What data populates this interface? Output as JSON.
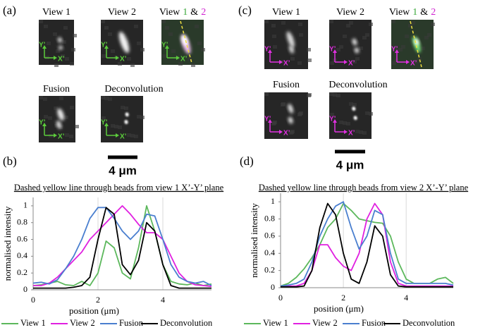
{
  "figure": {
    "panel_labels": [
      "(a)",
      "(b)",
      "(c)",
      "(d)"
    ],
    "image_titles": {
      "view1": "View 1",
      "view2": "View 2",
      "fusion": "Fusion",
      "deconvolution": "Deconvolution",
      "merged": [
        "View",
        "1",
        "&",
        "2"
      ]
    },
    "image_axes": {
      "y": "Y’",
      "x": "X’"
    },
    "scale_bar": "4 μm"
  },
  "chart_data": [
    {
      "type": "line",
      "title": "Dashed yellow line through beads from view 1 X’-Y’ plane",
      "xlabel": "position (μm)",
      "ylabel": "normalised intensity",
      "x": [
        0,
        0.25,
        0.5,
        0.75,
        1,
        1.25,
        1.5,
        1.75,
        2,
        2.25,
        2.5,
        2.75,
        3,
        3.25,
        3.5,
        3.75,
        4,
        4.25,
        4.5,
        4.75,
        5,
        5.25,
        5.5
      ],
      "series": [
        {
          "name": "View 1",
          "color": "#5cb85c",
          "values": [
            0.05,
            0.06,
            0.08,
            0.1,
            0.06,
            0.05,
            0.1,
            0.05,
            0.2,
            0.58,
            0.5,
            0.2,
            0.13,
            0.5,
            1.0,
            0.7,
            0.3,
            0.1,
            0.07,
            0.06,
            0.08,
            0.05,
            0.07
          ]
        },
        {
          "name": "View 2",
          "color": "#e020e0",
          "values": [
            0.05,
            0.05,
            0.08,
            0.15,
            0.25,
            0.35,
            0.45,
            0.6,
            0.7,
            0.8,
            0.9,
            1.0,
            0.9,
            0.78,
            0.68,
            0.68,
            0.6,
            0.4,
            0.2,
            0.1,
            0.06,
            0.05,
            0.04
          ]
        },
        {
          "name": "Fusion",
          "color": "#4a7fcf",
          "values": [
            0.08,
            0.09,
            0.07,
            0.12,
            0.25,
            0.4,
            0.6,
            0.85,
            0.98,
            0.98,
            0.85,
            0.7,
            0.6,
            0.7,
            0.9,
            0.88,
            0.6,
            0.3,
            0.15,
            0.1,
            0.08,
            0.1,
            0.05
          ]
        },
        {
          "name": "Deconvolution",
          "color": "#000000",
          "values": [
            0.02,
            0.02,
            0.02,
            0.02,
            0.02,
            0.03,
            0.05,
            0.15,
            0.6,
            0.98,
            0.9,
            0.3,
            0.18,
            0.35,
            0.8,
            0.7,
            0.3,
            0.05,
            0.02,
            0.02,
            0.02,
            0.02,
            0.02
          ]
        }
      ],
      "xlim": [
        0,
        5.5
      ],
      "xticks": [
        0,
        2,
        4
      ],
      "ylim": [
        0,
        1.1
      ],
      "yticks": [
        0,
        0.2,
        0.4,
        0.6,
        0.8,
        1
      ],
      "grid": true,
      "legend": "bottom"
    },
    {
      "type": "line",
      "title": "Dashed yellow line through beads from view 2 X’-Y’ plane",
      "xlabel": "position (μm)",
      "ylabel": "normalised intensity",
      "x": [
        0,
        0.25,
        0.5,
        0.75,
        1,
        1.25,
        1.5,
        1.75,
        2,
        2.25,
        2.5,
        2.75,
        3,
        3.25,
        3.5,
        3.75,
        4,
        4.25,
        4.5,
        4.75,
        5,
        5.25,
        5.5
      ],
      "series": [
        {
          "name": "View 1",
          "color": "#5cb85c",
          "values": [
            0.02,
            0.05,
            0.12,
            0.22,
            0.35,
            0.5,
            0.7,
            0.8,
            0.98,
            0.9,
            0.8,
            0.78,
            0.76,
            0.75,
            0.6,
            0.3,
            0.1,
            0.05,
            0.05,
            0.05,
            0.1,
            0.12,
            0.05
          ]
        },
        {
          "name": "View 2",
          "color": "#e020e0",
          "values": [
            0.02,
            0.02,
            0.02,
            0.05,
            0.2,
            0.5,
            0.5,
            0.35,
            0.25,
            0.2,
            0.4,
            0.8,
            0.98,
            0.85,
            0.3,
            0.05,
            0.02,
            0.02,
            0.02,
            0.02,
            0.02,
            0.02,
            0.02
          ]
        },
        {
          "name": "Fusion",
          "color": "#4a7fcf",
          "values": [
            0.02,
            0.03,
            0.05,
            0.1,
            0.3,
            0.6,
            0.8,
            0.95,
            1.0,
            0.7,
            0.45,
            0.6,
            0.9,
            0.85,
            0.4,
            0.1,
            0.05,
            0.05,
            0.05,
            0.05,
            0.05,
            0.05,
            0.03
          ]
        },
        {
          "name": "Deconvolution",
          "color": "#000000",
          "values": [
            0.01,
            0.01,
            0.01,
            0.02,
            0.2,
            0.7,
            0.98,
            0.85,
            0.4,
            0.1,
            0.05,
            0.3,
            0.72,
            0.6,
            0.15,
            0.02,
            0.01,
            0.01,
            0.01,
            0.01,
            0.01,
            0.01,
            0.01
          ]
        }
      ],
      "xlim": [
        0,
        5.5
      ],
      "xticks": [
        0,
        2,
        4
      ],
      "ylim": [
        0,
        1.1
      ],
      "yticks": [
        0,
        0.2,
        0.4,
        0.6,
        0.8,
        1
      ],
      "grid": true,
      "legend": "bottom"
    }
  ]
}
